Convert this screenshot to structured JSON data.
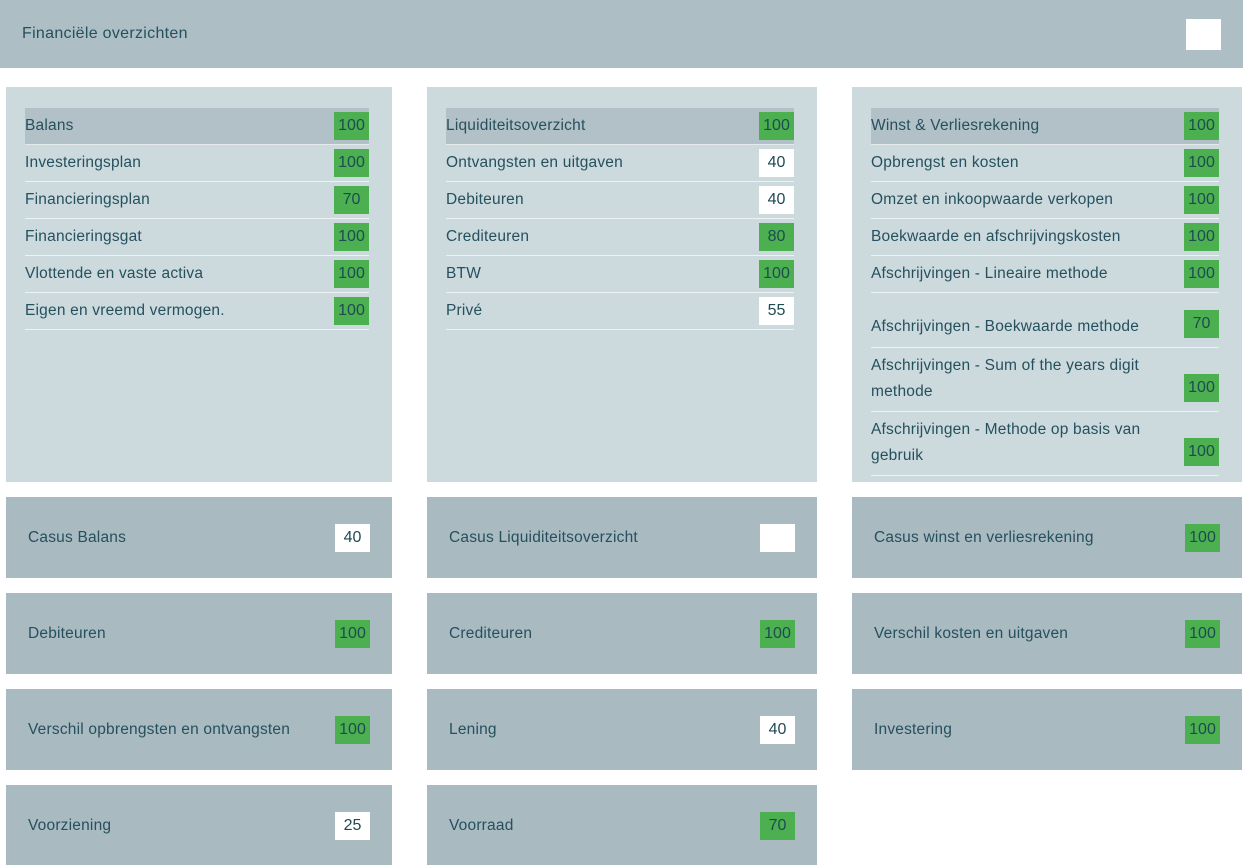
{
  "header": {
    "title": "Financiële overzichten",
    "score": ""
  },
  "colors": {
    "header_bg": "#adbfc5",
    "panel_bg": "#ccdade",
    "card_bg": "#a9bac1",
    "row_highlight_bg": "#b2c1c7",
    "text": "#25505e",
    "green": "#4caf50",
    "white": "#ffffff"
  },
  "panels": [
    {
      "items": [
        {
          "label": "Balans",
          "score": "100",
          "badge_color": "#4caf50"
        },
        {
          "label": "Investeringsplan",
          "score": "100",
          "badge_color": "#4caf50"
        },
        {
          "label": "Financieringsplan",
          "score": "70",
          "badge_color": "#4caf50"
        },
        {
          "label": "Financieringsgat",
          "score": "100",
          "badge_color": "#4caf50"
        },
        {
          "label": "Vlottende en vaste activa",
          "score": "100",
          "badge_color": "#4caf50"
        },
        {
          "label": "Eigen en vreemd vermogen.",
          "score": "100",
          "badge_color": "#4caf50"
        }
      ]
    },
    {
      "items": [
        {
          "label": "Liquiditeitsoverzicht",
          "score": "100",
          "badge_color": "#4caf50"
        },
        {
          "label": "Ontvangsten en uitgaven",
          "score": "40",
          "badge_color": "#ffffff"
        },
        {
          "label": "Debiteuren",
          "score": "40",
          "badge_color": "#ffffff"
        },
        {
          "label": "Crediteuren",
          "score": "80",
          "badge_color": "#4caf50"
        },
        {
          "label": "BTW",
          "score": "100",
          "badge_color": "#4caf50"
        },
        {
          "label": "Privé",
          "score": "55",
          "badge_color": "#ffffff"
        }
      ]
    },
    {
      "items": [
        {
          "label": "Winst & Verliesrekening",
          "score": "100",
          "badge_color": "#4caf50"
        },
        {
          "label": "Opbrengst en kosten",
          "score": "100",
          "badge_color": "#4caf50"
        },
        {
          "label": "Omzet en inkoopwaarde verkopen",
          "score": "100",
          "badge_color": "#4caf50"
        },
        {
          "label": "Boekwaarde en afschrijvingskosten",
          "score": "100",
          "badge_color": "#4caf50"
        },
        {
          "label": "Afschrijvingen - Lineaire methode",
          "score": "100",
          "badge_color": "#4caf50"
        },
        {
          "label": "Afschrijvingen - Boekwaarde methode",
          "score": "70",
          "badge_color": "#4caf50"
        },
        {
          "label": "Afschrijvingen - Sum of the years digit methode",
          "score": "100",
          "badge_color": "#4caf50"
        },
        {
          "label": "Afschrijvingen - Methode op basis van gebruik",
          "score": "100",
          "badge_color": "#4caf50"
        }
      ]
    }
  ],
  "cards": [
    {
      "label": "Casus Balans",
      "score": "40",
      "badge_color": "#ffffff"
    },
    {
      "label": "Casus Liquiditeitsoverzicht",
      "score": "",
      "badge_color": "#ffffff"
    },
    {
      "label": "Casus winst en verliesrekening",
      "score": "100",
      "badge_color": "#4caf50"
    },
    {
      "label": "Debiteuren",
      "score": "100",
      "badge_color": "#4caf50"
    },
    {
      "label": "Crediteuren",
      "score": "100",
      "badge_color": "#4caf50"
    },
    {
      "label": "Verschil kosten en uitgaven",
      "score": "100",
      "badge_color": "#4caf50"
    },
    {
      "label": "Verschil opbrengsten en ontvangsten",
      "score": "100",
      "badge_color": "#4caf50"
    },
    {
      "label": "Lening",
      "score": "40",
      "badge_color": "#ffffff"
    },
    {
      "label": "Investering",
      "score": "100",
      "badge_color": "#4caf50"
    },
    {
      "label": "Voorziening",
      "score": "25",
      "badge_color": "#ffffff"
    },
    {
      "label": "Voorraad",
      "score": "70",
      "badge_color": "#4caf50"
    }
  ]
}
